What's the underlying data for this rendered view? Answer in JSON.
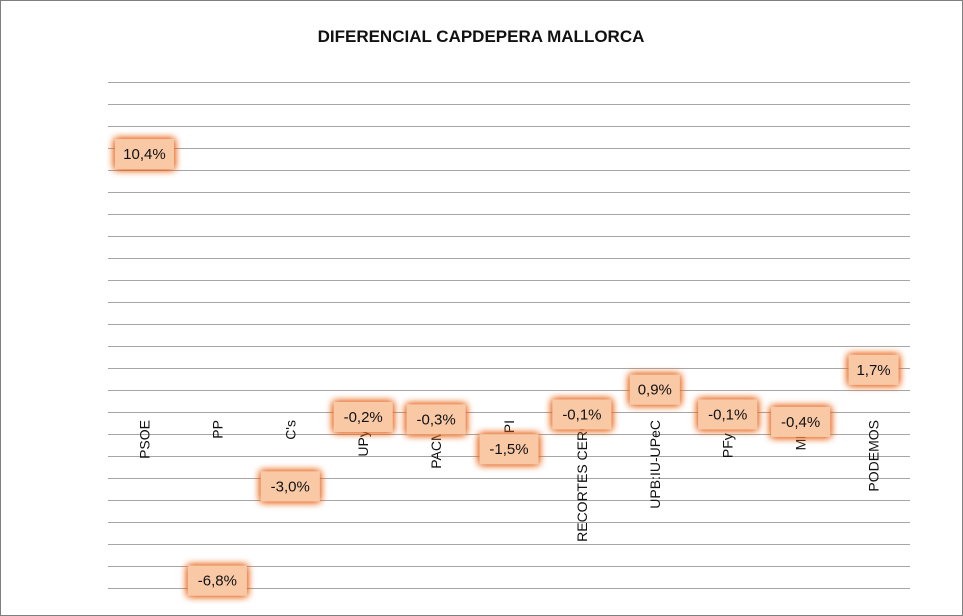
{
  "chart_data": {
    "type": "bar",
    "title": "DIFERENCIAL CAPDEPERA MALLORCA",
    "xlabel": "",
    "ylabel": "",
    "grid": true,
    "ylim": [
      -8.5,
      14.5
    ],
    "categories": [
      "PSOE",
      "PP",
      "C's",
      "UPyD",
      "PACMA",
      "PI",
      "RECORTES CERO",
      "UPB:IU-UPeC",
      "PFy V",
      "MES",
      "PODEMOS"
    ],
    "values": [
      10.4,
      -6.8,
      -3.0,
      -0.2,
      -0.3,
      -1.5,
      -0.1,
      0.9,
      -0.1,
      -0.4,
      1.7
    ],
    "data_labels": [
      "10,4%",
      "-6,8%",
      "-3,0%",
      "-0,2%",
      "-0,3%",
      "-1,5%",
      "-0,1%",
      "0,9%",
      "-0,1%",
      "-0,4%",
      "1,7%"
    ],
    "colors": {
      "label_fill": "#F9C9A6",
      "label_glow": "#E8641A",
      "grid": "#A6A6A6"
    }
  }
}
